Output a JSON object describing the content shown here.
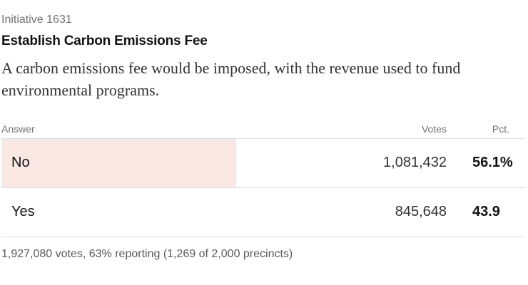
{
  "header": {
    "kicker": "Initiative 1631",
    "title": "Establish Carbon Emissions Fee",
    "description": "A carbon emissions fee would be imposed, with the revenue used to fund environmental programs."
  },
  "table": {
    "columns": {
      "answer": "Answer",
      "votes": "Votes",
      "pct": "Pct."
    },
    "rows": [
      {
        "answer": "No",
        "votes": "1,081,432",
        "pct": "56.1%",
        "share": 0.561,
        "winner": true
      },
      {
        "answer": "Yes",
        "votes": "845,648",
        "pct": "43.9",
        "share": 0.439,
        "winner": false
      }
    ]
  },
  "footer": {
    "summary": "1,927,080 votes, 63% reporting (1,269 of 2,000 precincts)"
  },
  "colors": {
    "winner_bar": "#f9e7e3",
    "divider": "#dcdcdc"
  }
}
